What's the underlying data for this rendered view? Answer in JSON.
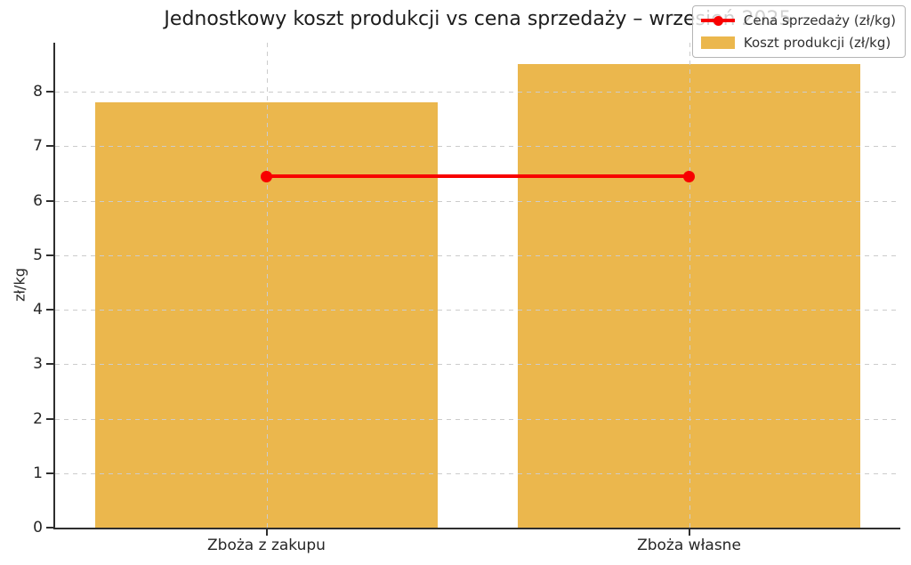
{
  "chart_data": {
    "type": "bar",
    "title": "Jednostkowy koszt produkcji vs cena sprzedaży – wrzesień 2025",
    "categories": [
      "Zboża z zakupu",
      "Zboża własne"
    ],
    "series": [
      {
        "name": "Koszt produkcji (zł/kg)",
        "type": "bar",
        "values": [
          7.8,
          8.5
        ],
        "color": "#ebb74d"
      },
      {
        "name": "Cena sprzedaży (zł/kg)",
        "type": "line",
        "values": [
          6.45,
          6.45
        ],
        "color": "#f80000"
      }
    ],
    "legend_order": [
      1,
      0
    ],
    "xlabel": "",
    "ylabel": "zł/kg",
    "ylim": [
      0,
      8.9
    ],
    "yticks": [
      0,
      1,
      2,
      3,
      4,
      5,
      6,
      7,
      8
    ],
    "grid": "dashed, horizontal at y-ticks and vertical at category centers, drawn above bars",
    "legend_position": "upper right"
  },
  "colors": {
    "bar": "#ebb74d",
    "line": "#f80000",
    "grid": "#cccccc",
    "axis": "#2e2e2e",
    "text": "#262626"
  }
}
